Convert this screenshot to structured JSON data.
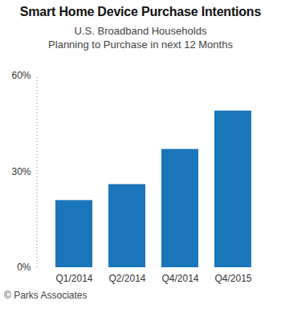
{
  "chart_data": {
    "type": "bar",
    "title": "Smart Home Device Purchase Intentions",
    "subtitle": [
      "U.S. Broadband Households",
      "Planning to Purchase in next 12 Months"
    ],
    "caption": "© Parks Associates",
    "categories": [
      "Q1/2014",
      "Q2/2014",
      "Q4/2014",
      "Q4/2015"
    ],
    "values": [
      21,
      26,
      37,
      49
    ],
    "color": "#1a75bb",
    "ylim": [
      0,
      60
    ],
    "yticks": [
      {
        "value": 0,
        "label": "0%"
      },
      {
        "value": 30,
        "label": "30%"
      },
      {
        "value": 60,
        "label": "60%"
      }
    ],
    "grid": false
  }
}
